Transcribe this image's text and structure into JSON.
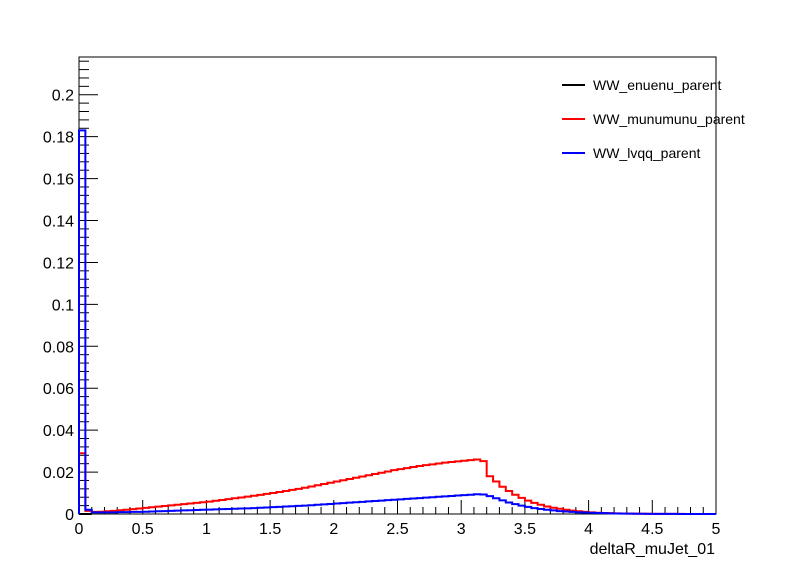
{
  "chart_data": {
    "type": "line",
    "style": "step-histogram",
    "xlabel": "deltaR_muJet_01",
    "ylabel": "",
    "title": "",
    "xlim": [
      0,
      5
    ],
    "ylim": [
      0,
      0.218
    ],
    "grid": false,
    "legend_position": "top-right",
    "x_ticks": [
      0,
      0.5,
      1,
      1.5,
      2,
      2.5,
      3,
      3.5,
      4,
      4.5,
      5
    ],
    "x_tick_labels": [
      "0",
      "0.5",
      "1",
      "1.5",
      "2",
      "2.5",
      "3",
      "3.5",
      "4",
      "4.5",
      "5"
    ],
    "y_ticks": [
      0,
      0.02,
      0.04,
      0.06,
      0.08,
      0.1,
      0.12,
      0.14,
      0.16,
      0.18,
      0.2
    ],
    "y_tick_labels": [
      "0",
      "0.02",
      "0.04",
      "0.06",
      "0.08",
      "0.1",
      "0.12",
      "0.14",
      "0.16",
      "0.18",
      "0.2"
    ],
    "bin_width": 0.05,
    "series": [
      {
        "name": "WW_enuenu_parent",
        "color": "#000000",
        "values": [
          0.0,
          0.0
        ]
      },
      {
        "name": "WW_munumunu_parent",
        "color": "#ff0000",
        "values": [
          0.029,
          0.0015,
          0.001,
          0.0011,
          0.0013,
          0.0015,
          0.0018,
          0.002,
          0.0023,
          0.0026,
          0.0029,
          0.0032,
          0.0035,
          0.0038,
          0.0041,
          0.0044,
          0.0047,
          0.005,
          0.0053,
          0.0056,
          0.0059,
          0.0063,
          0.0067,
          0.0071,
          0.0075,
          0.0079,
          0.0083,
          0.0087,
          0.0091,
          0.0096,
          0.01,
          0.0105,
          0.011,
          0.0115,
          0.012,
          0.0125,
          0.0131,
          0.0137,
          0.0143,
          0.0149,
          0.0155,
          0.0161,
          0.0167,
          0.0173,
          0.0179,
          0.0185,
          0.0191,
          0.0197,
          0.0203,
          0.0209,
          0.0214,
          0.0219,
          0.0224,
          0.0229,
          0.0233,
          0.0237,
          0.0241,
          0.0245,
          0.0248,
          0.0251,
          0.0254,
          0.0257,
          0.026,
          0.0252,
          0.018,
          0.0155,
          0.013,
          0.011,
          0.0092,
          0.0077,
          0.0064,
          0.0053,
          0.0044,
          0.0036,
          0.003,
          0.0025,
          0.002,
          0.0016,
          0.0013,
          0.001,
          0.0008,
          0.0006,
          0.0005,
          0.0004,
          0.0003,
          0.00025,
          0.0002,
          0.00015,
          0.0001,
          0.0001,
          8e-05,
          6e-05,
          5e-05,
          4e-05,
          3e-05,
          2e-05,
          2e-05,
          1e-05,
          1e-05,
          0.0
        ]
      },
      {
        "name": "WW_lvqq_parent",
        "color": "#0000ff",
        "values": [
          0.183,
          0.002,
          0.0008,
          0.0008,
          0.0008,
          0.0008,
          0.0009,
          0.0009,
          0.001,
          0.001,
          0.0011,
          0.0012,
          0.0013,
          0.0014,
          0.0015,
          0.0016,
          0.0017,
          0.0018,
          0.0019,
          0.002,
          0.0021,
          0.0022,
          0.0023,
          0.0024,
          0.0025,
          0.0026,
          0.0027,
          0.0028,
          0.003,
          0.0031,
          0.0033,
          0.0034,
          0.0036,
          0.0037,
          0.0039,
          0.004,
          0.0042,
          0.0044,
          0.0046,
          0.0048,
          0.005,
          0.0052,
          0.0054,
          0.0056,
          0.0058,
          0.006,
          0.0062,
          0.0064,
          0.0066,
          0.0068,
          0.007,
          0.0072,
          0.0074,
          0.0076,
          0.0078,
          0.008,
          0.0082,
          0.0084,
          0.0086,
          0.0088,
          0.009,
          0.0092,
          0.0094,
          0.0093,
          0.0085,
          0.0075,
          0.0065,
          0.0055,
          0.0047,
          0.004,
          0.0034,
          0.0028,
          0.0024,
          0.002,
          0.0017,
          0.0014,
          0.0012,
          0.001,
          0.0008,
          0.0007,
          0.0006,
          0.0005,
          0.0004,
          0.0003,
          0.00025,
          0.0002,
          0.00015,
          0.00012,
          0.0001,
          8e-05,
          6e-05,
          5e-05,
          4e-05,
          3e-05,
          2e-05,
          2e-05,
          1e-05,
          1e-05,
          0.0,
          0.0
        ]
      }
    ]
  }
}
